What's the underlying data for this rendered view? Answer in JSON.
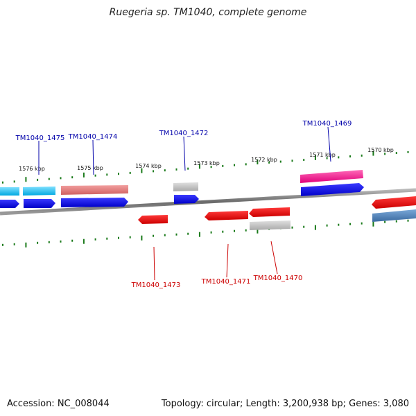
{
  "title": "Ruegeria sp. TM1040, complete genome",
  "footer": {
    "accession": "Accession: NC_008044",
    "summary": "Topology: circular; Length: 3,200,938 bp; Genes: 3,080"
  },
  "colors": {
    "forward_label": "#0000aa",
    "reverse_label": "#cc0000",
    "tick": "#1a7a1a",
    "backbone": "#808080"
  },
  "kbp_labels": [
    "1576 kbp",
    "1575 kbp",
    "1574 kbp",
    "1573 kbp",
    "1572 kbp",
    "1571 kbp",
    "1570 kbp"
  ],
  "gene_labels": {
    "tm1475": "TM1040_1475",
    "tm1474": "TM1040_1474",
    "tm1472": "TM1040_1472",
    "tm1469": "TM1040_1469",
    "tm1473": "TM1040_1473",
    "tm1471": "TM1040_1471",
    "tm1470": "TM1040_1470"
  }
}
